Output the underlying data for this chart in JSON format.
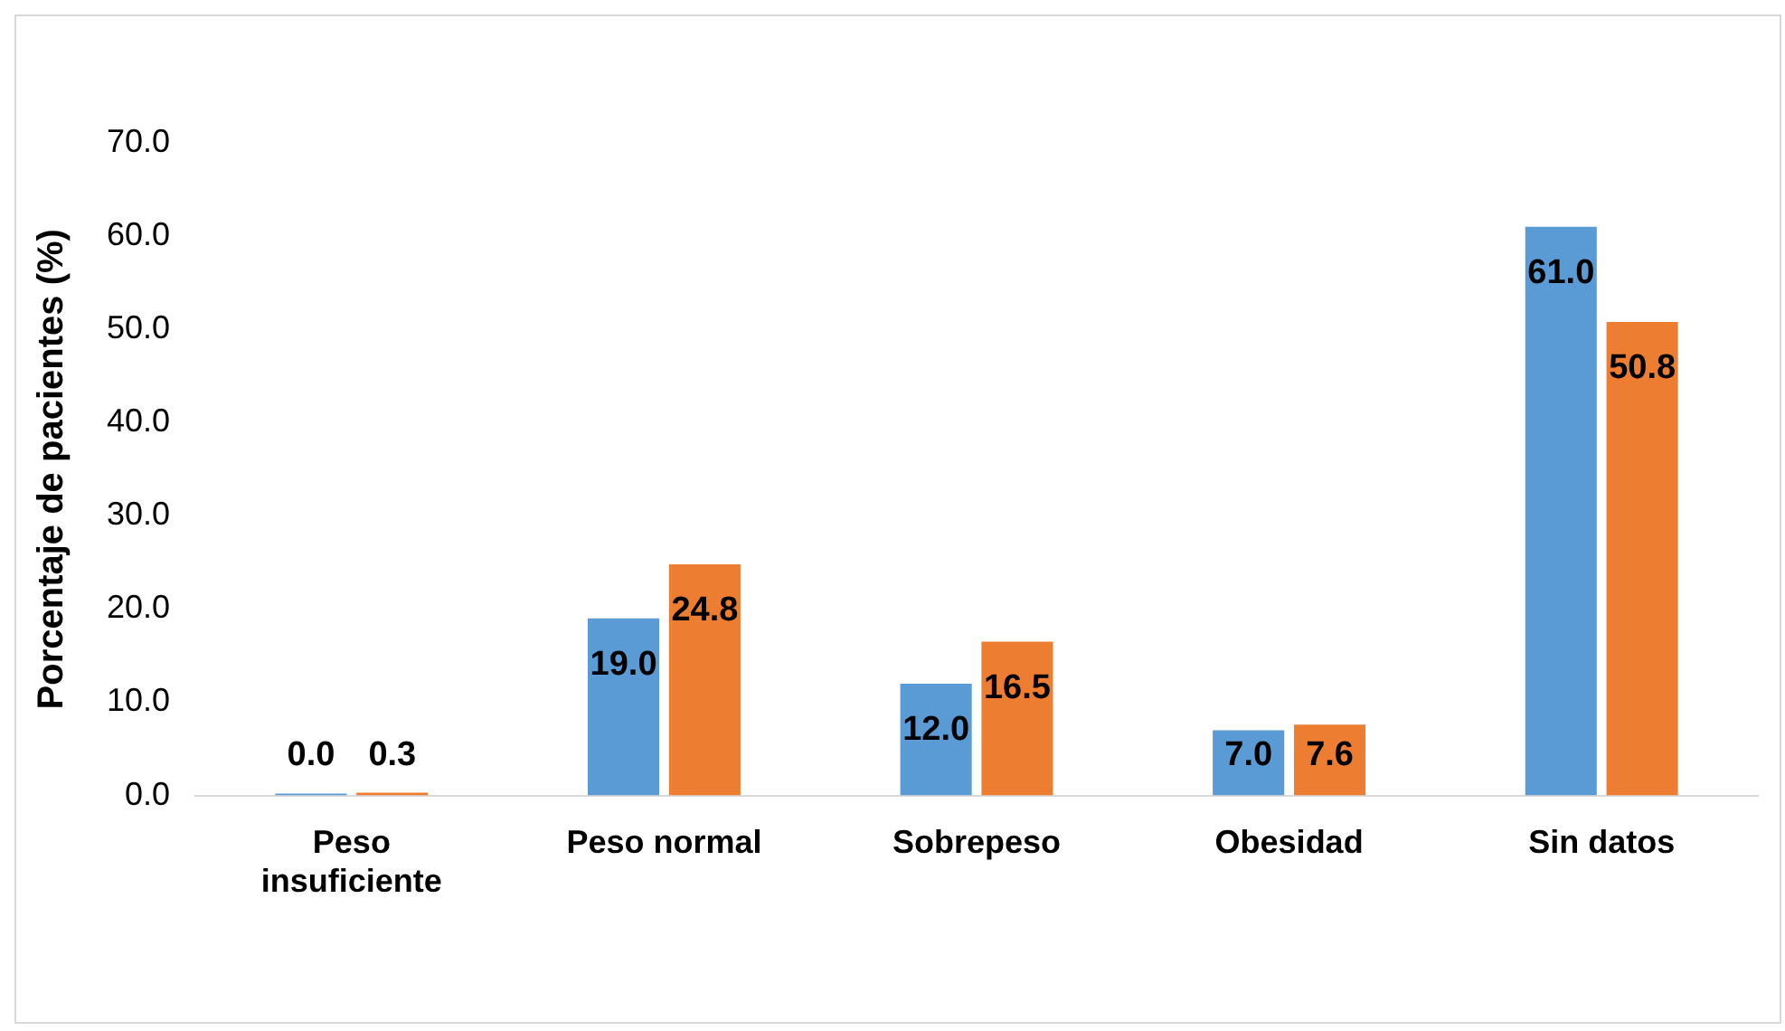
{
  "chart_data": {
    "type": "bar",
    "ylabel": "Porcentaje de pacientes (%)",
    "categories": [
      "Peso insuficiente",
      "Peso normal",
      "Sobrepeso",
      "Obesidad",
      "Sin datos"
    ],
    "series": [
      {
        "color": "#5b9bd5",
        "values": [
          0.0,
          19.0,
          12.0,
          7.0,
          61.0
        ],
        "value_labels": [
          "0.0",
          "19.0",
          "12.0",
          "7.0",
          "61.0"
        ]
      },
      {
        "color": "#ed7d31",
        "values": [
          0.3,
          24.8,
          16.5,
          7.6,
          50.8
        ],
        "value_labels": [
          "0.3",
          "24.8",
          "16.5",
          "7.6",
          "50.8"
        ]
      }
    ],
    "ylim": [
      0,
      70
    ],
    "yticks": [
      {
        "value": 0,
        "label": "0.0"
      },
      {
        "value": 10,
        "label": "10.0"
      },
      {
        "value": 20,
        "label": "20.0"
      },
      {
        "value": 30,
        "label": "30.0"
      },
      {
        "value": 40,
        "label": "40.0"
      },
      {
        "value": 50,
        "label": "50.0"
      },
      {
        "value": 60,
        "label": "60.0"
      },
      {
        "value": 70,
        "label": "70.0"
      }
    ],
    "grid": false,
    "legend": false
  }
}
